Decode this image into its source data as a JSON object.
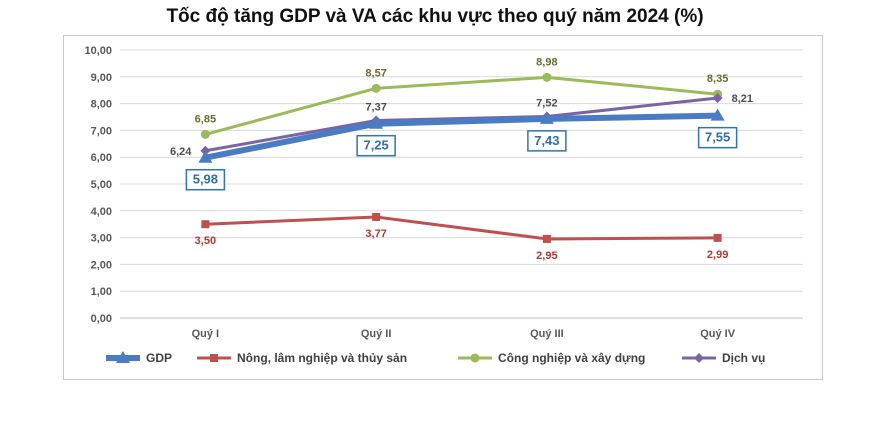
{
  "chart_data": {
    "type": "line",
    "title": "Tốc độ tăng GDP và VA các khu vực theo quý năm 2024 (%)",
    "categories": [
      "Quý I",
      "Quý II",
      "Quý III",
      "Quý IV"
    ],
    "ylim": [
      0,
      10
    ],
    "yticks": [
      "0,00",
      "1,00",
      "2,00",
      "3,00",
      "4,00",
      "5,00",
      "6,00",
      "7,00",
      "8,00",
      "9,00",
      "10,00"
    ],
    "grid": true,
    "legend": "bottom",
    "series": [
      {
        "name": "GDP",
        "values": [
          5.98,
          7.25,
          7.43,
          7.55
        ],
        "labels": [
          "5,98",
          "7,25",
          "7,43",
          "7,55"
        ],
        "color": "#4a7cc4",
        "marker": "triangle"
      },
      {
        "name": "Nông, lâm nghiệp và thủy sản",
        "values": [
          3.5,
          3.77,
          2.95,
          2.99
        ],
        "labels": [
          "3,50",
          "3,77",
          "2,95",
          "2,99"
        ],
        "color": "#c0504d",
        "marker": "square"
      },
      {
        "name": "Công nghiệp và xây dựng",
        "values": [
          6.85,
          8.57,
          8.98,
          8.35
        ],
        "labels": [
          "6,85",
          "8,57",
          "8,98",
          "8,35"
        ],
        "color": "#9bbb59",
        "marker": "circle"
      },
      {
        "name": "Dịch vụ",
        "values": [
          6.24,
          7.37,
          7.52,
          8.21
        ],
        "labels": [
          "6,24",
          "7,37",
          "7,52",
          "8,21"
        ],
        "color": "#7a64a6",
        "marker": "diamond"
      }
    ]
  }
}
